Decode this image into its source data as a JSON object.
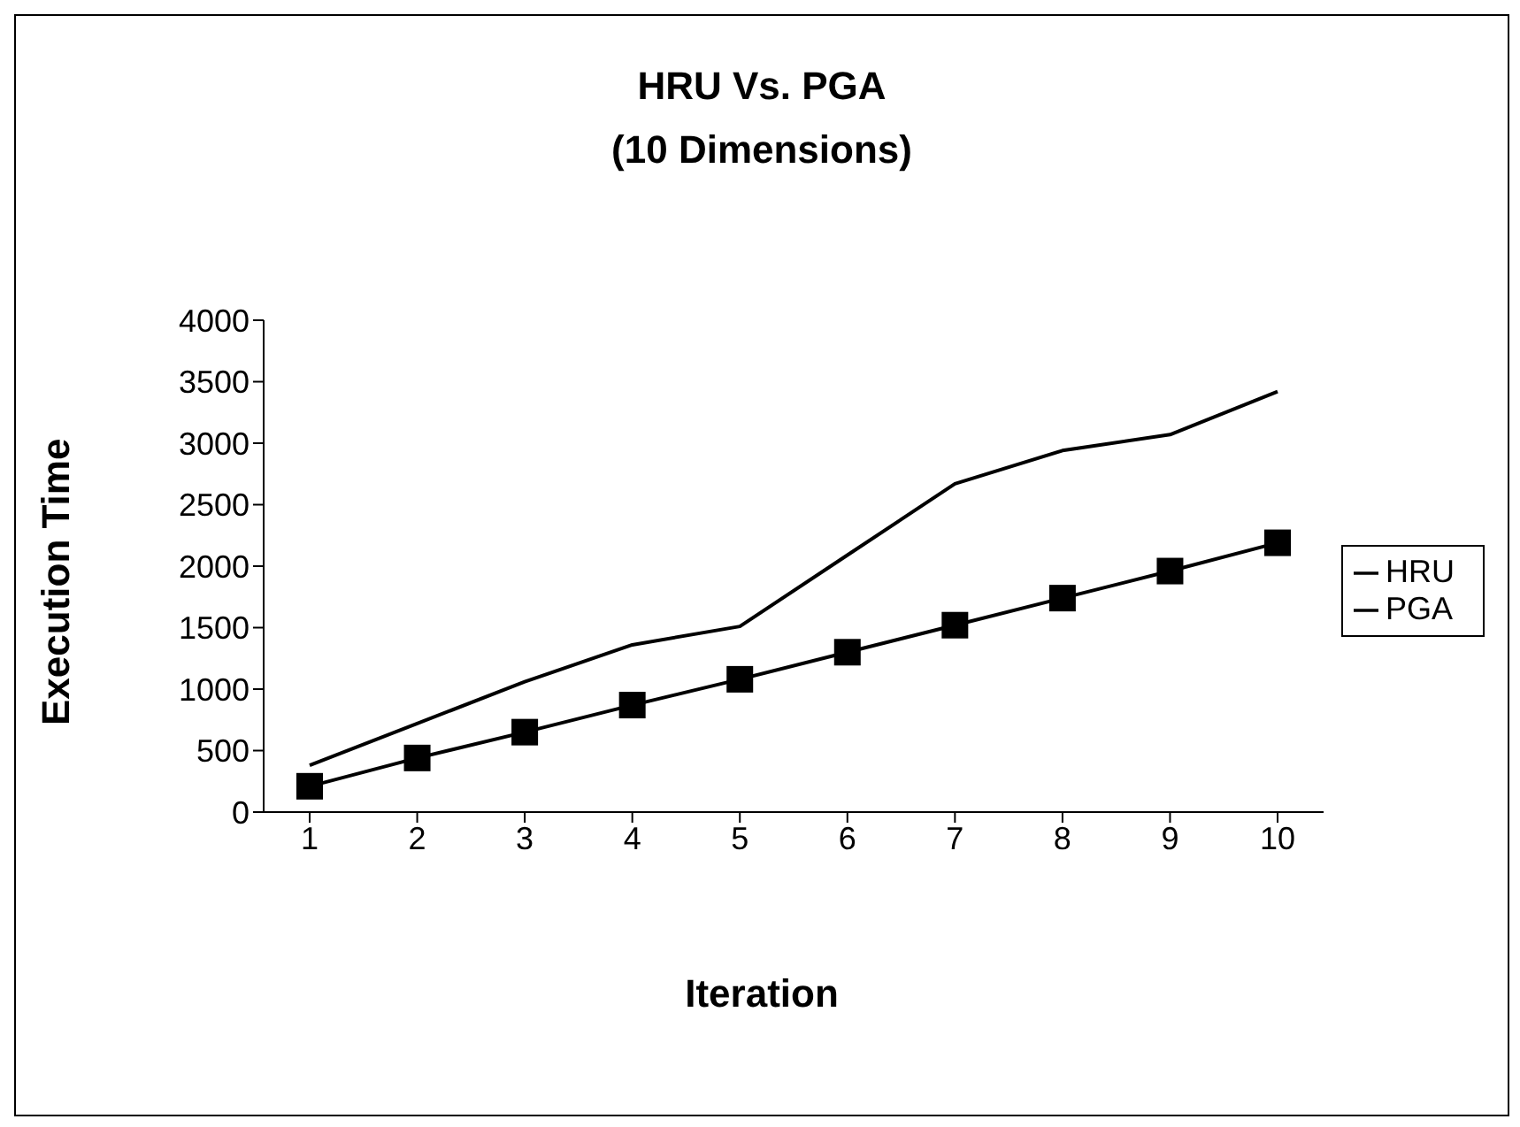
{
  "chart_data": {
    "type": "line",
    "title": "HRU Vs. PGA\n(10 Dimensions)",
    "xlabel": "Iteration",
    "ylabel": "Execution Time",
    "categories": [
      "1",
      "2",
      "3",
      "4",
      "5",
      "6",
      "7",
      "8",
      "9",
      "10"
    ],
    "series": [
      {
        "name": "HRU",
        "color": "#000000",
        "marker": "none",
        "values": [
          380,
          720,
          1060,
          1360,
          1510,
          2090,
          2670,
          2940,
          3070,
          3420
        ]
      },
      {
        "name": "PGA",
        "color": "#000000",
        "marker": "square",
        "values": [
          210,
          440,
          650,
          870,
          1080,
          1300,
          1520,
          1740,
          1960,
          2190
        ]
      }
    ],
    "ylim": [
      0,
      4000
    ],
    "yticks": [
      0,
      500,
      1000,
      1500,
      2000,
      2500,
      3000,
      3500,
      4000
    ],
    "legend": "right",
    "line_style": "solid"
  }
}
